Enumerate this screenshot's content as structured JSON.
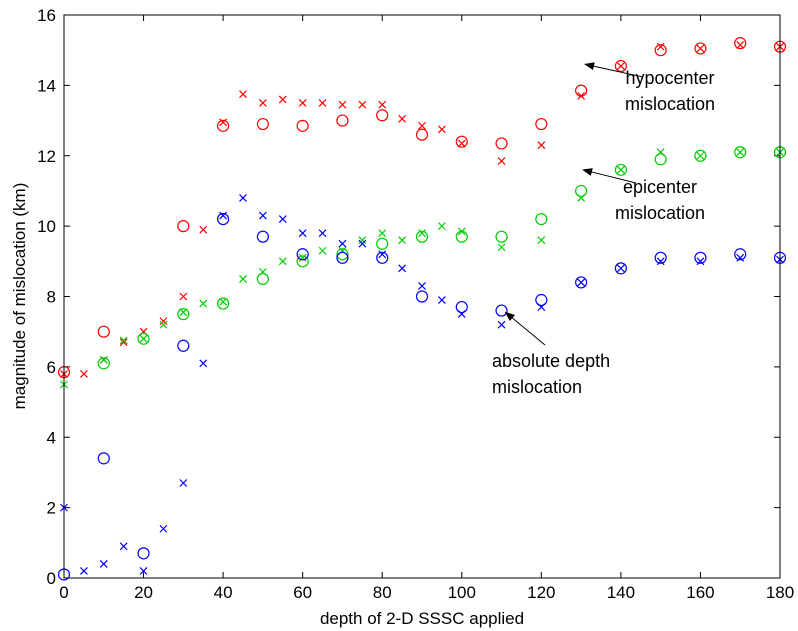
{
  "chart_data": {
    "type": "scatter",
    "title": "",
    "xlabel": "depth of 2-D SSSC applied",
    "ylabel": "magnitude of mislocation (km)",
    "xlim": [
      0,
      180
    ],
    "ylim": [
      0,
      16
    ],
    "xticks": [
      "0",
      "20",
      "40",
      "60",
      "80",
      "100",
      "120",
      "140",
      "160",
      "180"
    ],
    "yticks": [
      "0",
      "2",
      "4",
      "6",
      "8",
      "10",
      "12",
      "14",
      "16"
    ],
    "grid": false,
    "legend": "none",
    "series": [
      {
        "name": "hypocenter mislocation",
        "marker": "circle",
        "color": "#ff0000",
        "points": [
          [
            0,
            5.85
          ],
          [
            10,
            7.0
          ],
          [
            30,
            10.0
          ],
          [
            40,
            12.85
          ],
          [
            50,
            12.9
          ],
          [
            60,
            12.85
          ],
          [
            70,
            13.0
          ],
          [
            80,
            13.15
          ],
          [
            90,
            12.6
          ],
          [
            100,
            12.4
          ],
          [
            110,
            12.35
          ],
          [
            120,
            12.9
          ],
          [
            130,
            13.85
          ],
          [
            140,
            14.55
          ],
          [
            150,
            15.0
          ],
          [
            160,
            15.05
          ],
          [
            170,
            15.2
          ],
          [
            180,
            15.1
          ]
        ]
      },
      {
        "name": "hypocenter mislocation",
        "marker": "x",
        "color": "#ff0000",
        "points": [
          [
            0,
            5.8
          ],
          [
            5,
            5.8
          ],
          [
            10,
            6.2
          ],
          [
            15,
            6.7
          ],
          [
            20,
            7.0
          ],
          [
            25,
            7.3
          ],
          [
            30,
            8.0
          ],
          [
            35,
            9.9
          ],
          [
            40,
            12.95
          ],
          [
            45,
            13.75
          ],
          [
            50,
            13.5
          ],
          [
            55,
            13.6
          ],
          [
            60,
            13.5
          ],
          [
            65,
            13.5
          ],
          [
            70,
            13.45
          ],
          [
            75,
            13.45
          ],
          [
            80,
            13.45
          ],
          [
            85,
            13.05
          ],
          [
            90,
            12.85
          ],
          [
            95,
            12.75
          ],
          [
            100,
            12.35
          ],
          [
            110,
            11.85
          ],
          [
            120,
            12.3
          ],
          [
            130,
            13.7
          ],
          [
            140,
            14.55
          ],
          [
            150,
            15.1
          ],
          [
            160,
            15.05
          ],
          [
            170,
            15.15
          ],
          [
            180,
            15.1
          ]
        ]
      },
      {
        "name": "epicenter mislocation",
        "marker": "circle",
        "color": "#00cc00",
        "points": [
          [
            10,
            6.1
          ],
          [
            20,
            6.8
          ],
          [
            30,
            7.5
          ],
          [
            40,
            7.8
          ],
          [
            50,
            8.5
          ],
          [
            60,
            9.0
          ],
          [
            70,
            9.2
          ],
          [
            80,
            9.5
          ],
          [
            90,
            9.7
          ],
          [
            100,
            9.7
          ],
          [
            110,
            9.7
          ],
          [
            120,
            10.2
          ],
          [
            130,
            11.0
          ],
          [
            140,
            11.6
          ],
          [
            150,
            11.9
          ],
          [
            160,
            12.0
          ],
          [
            170,
            12.1
          ],
          [
            180,
            12.1
          ]
        ]
      },
      {
        "name": "epicenter mislocation",
        "marker": "x",
        "color": "#00cc00",
        "points": [
          [
            0,
            5.5
          ],
          [
            10,
            6.2
          ],
          [
            15,
            6.75
          ],
          [
            20,
            6.8
          ],
          [
            25,
            7.2
          ],
          [
            30,
            7.55
          ],
          [
            35,
            7.8
          ],
          [
            40,
            7.85
          ],
          [
            45,
            8.5
          ],
          [
            50,
            8.7
          ],
          [
            55,
            9.0
          ],
          [
            60,
            9.1
          ],
          [
            65,
            9.3
          ],
          [
            70,
            9.3
          ],
          [
            75,
            9.6
          ],
          [
            80,
            9.8
          ],
          [
            85,
            9.6
          ],
          [
            90,
            9.8
          ],
          [
            95,
            10.0
          ],
          [
            100,
            9.85
          ],
          [
            110,
            9.4
          ],
          [
            120,
            9.6
          ],
          [
            130,
            10.8
          ],
          [
            140,
            11.6
          ],
          [
            150,
            12.1
          ],
          [
            160,
            12.0
          ],
          [
            170,
            12.1
          ],
          [
            180,
            12.1
          ]
        ]
      },
      {
        "name": "absolute depth mislocation",
        "marker": "circle",
        "color": "#0000ff",
        "points": [
          [
            0,
            0.1
          ],
          [
            10,
            3.4
          ],
          [
            20,
            0.7
          ],
          [
            30,
            6.6
          ],
          [
            40,
            10.2
          ],
          [
            50,
            9.7
          ],
          [
            60,
            9.2
          ],
          [
            70,
            9.1
          ],
          [
            80,
            9.1
          ],
          [
            90,
            8.0
          ],
          [
            100,
            7.7
          ],
          [
            110,
            7.6
          ],
          [
            120,
            7.9
          ],
          [
            130,
            8.4
          ],
          [
            140,
            8.8
          ],
          [
            150,
            9.1
          ],
          [
            160,
            9.1
          ],
          [
            170,
            9.2
          ],
          [
            180,
            9.1
          ]
        ]
      },
      {
        "name": "absolute depth mislocation",
        "marker": "x",
        "color": "#0000ff",
        "points": [
          [
            0,
            2.0
          ],
          [
            5,
            0.2
          ],
          [
            10,
            0.4
          ],
          [
            15,
            0.9
          ],
          [
            20,
            0.2
          ],
          [
            25,
            1.4
          ],
          [
            30,
            2.7
          ],
          [
            35,
            6.1
          ],
          [
            40,
            10.3
          ],
          [
            45,
            10.8
          ],
          [
            50,
            10.3
          ],
          [
            55,
            10.2
          ],
          [
            60,
            9.8
          ],
          [
            65,
            9.8
          ],
          [
            70,
            9.5
          ],
          [
            75,
            9.5
          ],
          [
            80,
            9.2
          ],
          [
            85,
            8.8
          ],
          [
            90,
            8.3
          ],
          [
            95,
            7.9
          ],
          [
            100,
            7.5
          ],
          [
            110,
            7.2
          ],
          [
            120,
            7.7
          ],
          [
            130,
            8.4
          ],
          [
            140,
            8.8
          ],
          [
            150,
            9.0
          ],
          [
            160,
            9.0
          ],
          [
            170,
            9.1
          ],
          [
            180,
            9.05
          ]
        ]
      }
    ],
    "annotations": [
      {
        "lines": [
          "hypocenter",
          "mislocation"
        ],
        "arrow_to": [
          131,
          14.6
        ]
      },
      {
        "lines": [
          "epicenter",
          "mislocation"
        ],
        "arrow_to": [
          130.5,
          11.6
        ]
      },
      {
        "lines": [
          "absolute depth",
          "mislocation"
        ],
        "arrow_to": [
          111,
          7.55
        ]
      }
    ]
  }
}
